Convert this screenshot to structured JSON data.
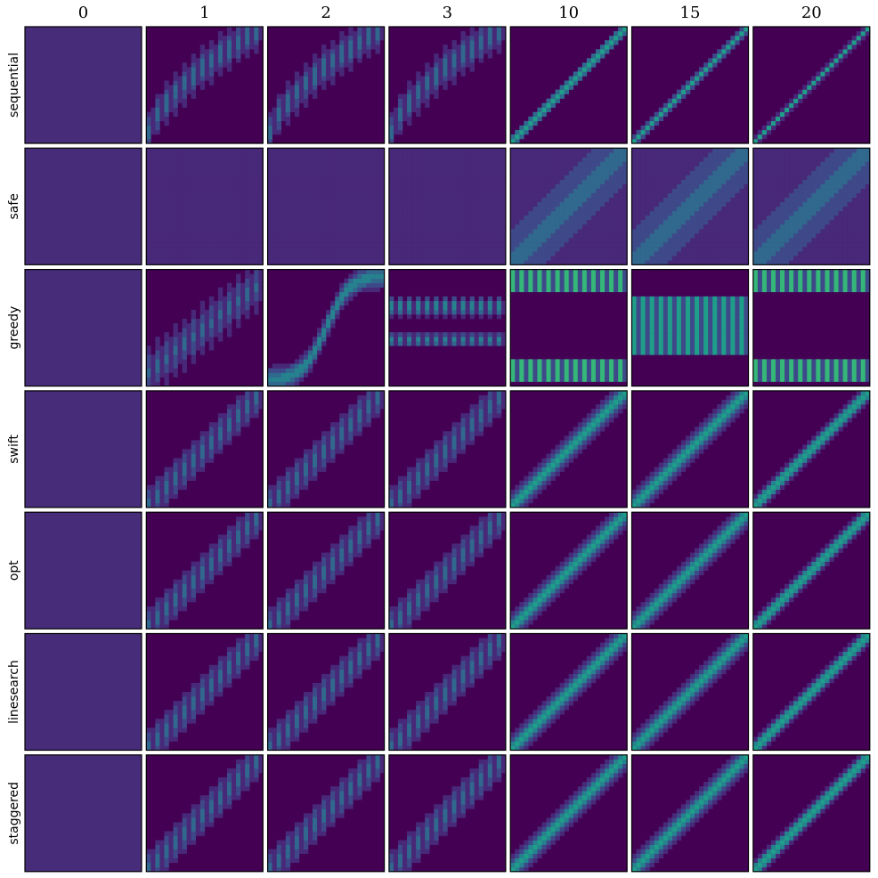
{
  "chart_data": {
    "type": "heatmap_grid",
    "columns": [
      "0",
      "1",
      "2",
      "3",
      "10",
      "15",
      "20"
    ],
    "rows": [
      "sequential",
      "safe",
      "greedy",
      "swift",
      "opt",
      "linesearch",
      "staggered"
    ]
  }
}
